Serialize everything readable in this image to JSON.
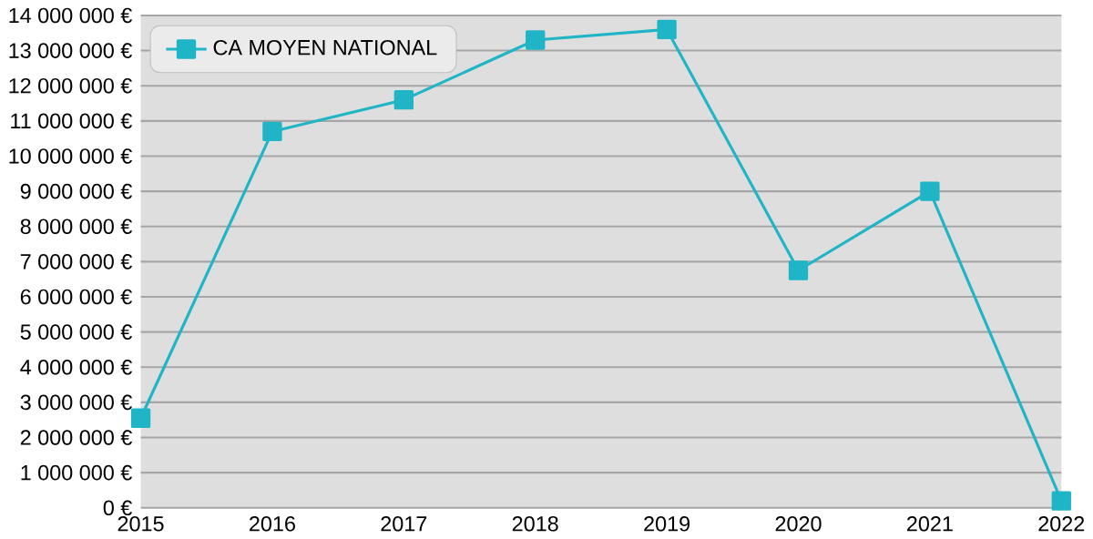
{
  "chart_data": {
    "type": "line",
    "categories": [
      "2015",
      "2016",
      "2017",
      "2018",
      "2019",
      "2020",
      "2021",
      "2022"
    ],
    "series": [
      {
        "name": "CA MOYEN NATIONAL",
        "color": "#1fb5c6",
        "values": [
          2550000,
          10700000,
          11600000,
          13300000,
          13600000,
          6750000,
          9000000,
          200000
        ]
      }
    ],
    "ylim": [
      0,
      14000000
    ],
    "yticks": [
      {
        "value": 0,
        "label": "0 €"
      },
      {
        "value": 1000000,
        "label": "1 000 000 €"
      },
      {
        "value": 2000000,
        "label": "2 000 000 €"
      },
      {
        "value": 3000000,
        "label": "3 000 000 €"
      },
      {
        "value": 4000000,
        "label": "4 000 000 €"
      },
      {
        "value": 5000000,
        "label": "5 000 000 €"
      },
      {
        "value": 6000000,
        "label": "6 000 000 €"
      },
      {
        "value": 7000000,
        "label": "7 000 000 €"
      },
      {
        "value": 8000000,
        "label": "8 000 000 €"
      },
      {
        "value": 9000000,
        "label": "9 000 000 €"
      },
      {
        "value": 10000000,
        "label": "10 000 000 €"
      },
      {
        "value": 11000000,
        "label": "11 000 000 €"
      },
      {
        "value": 12000000,
        "label": "12 000 000 €"
      },
      {
        "value": 13000000,
        "label": "13 000 000 €"
      },
      {
        "value": 14000000,
        "label": "14 000 000 €"
      }
    ],
    "grid": "y",
    "legend": "top left",
    "marker": "square",
    "line_style": "solid"
  }
}
